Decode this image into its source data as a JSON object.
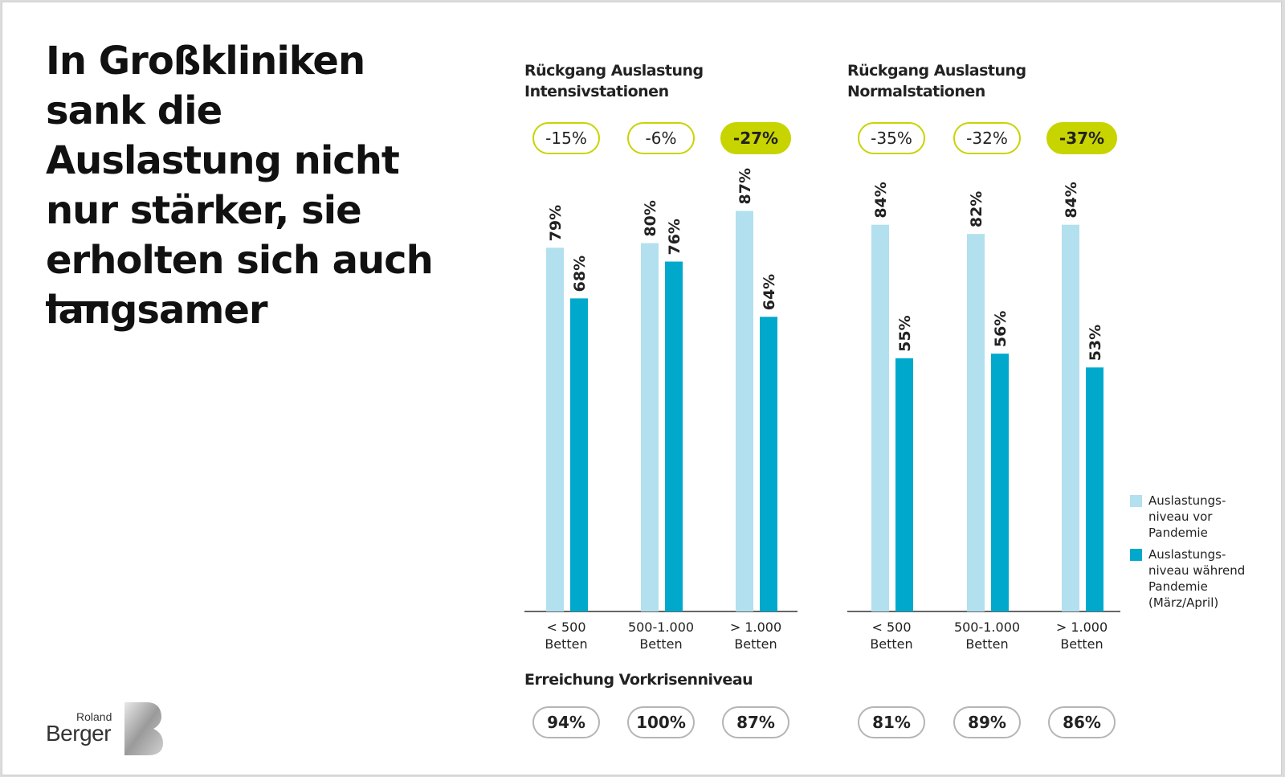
{
  "headline": "In Großkliniken sank die Auslastung nicht nur stärker, sie erholten sich auch langsamer",
  "logo": {
    "top": "Roland",
    "bottom": "Berger"
  },
  "colors": {
    "before": "#b2e0ee",
    "during": "#00a9cc",
    "accent": "#c8d400",
    "grey_border": "#b5b5b5",
    "axis": "#333333"
  },
  "reach_title": "Erreichung Vorkrisenniveau",
  "legend": [
    {
      "label": "Auslastungs-\nniveau vor\nPandemie",
      "color": "#b2e0ee"
    },
    {
      "label": "Auslastungs-\nniveau während\nPandemie\n(März/April)",
      "color": "#00a9cc"
    }
  ],
  "chart_data": [
    {
      "type": "bar",
      "title": "Rückgang Auslastung Intensivstationen",
      "categories": [
        "< 500 Betten",
        "500-1.000 Betten",
        "> 1.000 Betten"
      ],
      "category_lines": [
        [
          "< 500",
          "Betten"
        ],
        [
          "500-1.000",
          "Betten"
        ],
        [
          "> 1.000",
          "Betten"
        ]
      ],
      "series": [
        {
          "name": "Auslastungs-niveau vor Pandemie",
          "values": [
            79,
            80,
            87
          ]
        },
        {
          "name": "Auslastungs-niveau während Pandemie (März/April)",
          "values": [
            68,
            76,
            64
          ]
        }
      ],
      "value_labels": [
        [
          "79%",
          "80%",
          "87%"
        ],
        [
          "68%",
          "76%",
          "64%"
        ]
      ],
      "changes": [
        "-15%",
        "-6%",
        "-27%"
      ],
      "highlight_index": 2,
      "reach": [
        "94%",
        "100%",
        "87%"
      ],
      "ylim": [
        0,
        100
      ]
    },
    {
      "type": "bar",
      "title": "Rückgang Auslastung Normalstationen",
      "categories": [
        "< 500 Betten",
        "500-1.000 Betten",
        "> 1.000 Betten"
      ],
      "category_lines": [
        [
          "< 500",
          "Betten"
        ],
        [
          "500-1.000",
          "Betten"
        ],
        [
          "> 1.000",
          "Betten"
        ]
      ],
      "series": [
        {
          "name": "Auslastungs-niveau vor Pandemie",
          "values": [
            84,
            82,
            84
          ]
        },
        {
          "name": "Auslastungs-niveau während Pandemie (März/April)",
          "values": [
            55,
            56,
            53
          ]
        }
      ],
      "value_labels": [
        [
          "84%",
          "82%",
          "84%"
        ],
        [
          "55%",
          "56%",
          "53%"
        ]
      ],
      "changes": [
        "-35%",
        "-32%",
        "-37%"
      ],
      "highlight_index": 2,
      "reach": [
        "81%",
        "89%",
        "86%"
      ],
      "ylim": [
        0,
        100
      ]
    }
  ]
}
